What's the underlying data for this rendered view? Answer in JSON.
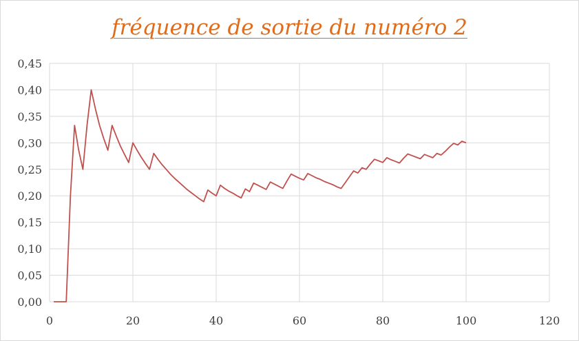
{
  "chart_data": {
    "type": "line",
    "title": "fréquence de sortie du numéro 2",
    "xlim": [
      0,
      120
    ],
    "ylim": [
      0,
      0.45
    ],
    "x_ticks": [
      0,
      20,
      40,
      60,
      80,
      100,
      120
    ],
    "x_tick_labels": [
      "0",
      "20",
      "40",
      "60",
      "80",
      "100",
      "120"
    ],
    "y_ticks": [
      0,
      0.05,
      0.1,
      0.15,
      0.2,
      0.25,
      0.3,
      0.35,
      0.4,
      0.45
    ],
    "y_tick_labels": [
      "0,00",
      "0,05",
      "0,10",
      "0,15",
      "0,20",
      "0,25",
      "0,30",
      "0,35",
      "0,40",
      "0,45"
    ],
    "grid": true,
    "legend": "none",
    "series": [
      {
        "color": "#c0504d",
        "x": [
          1,
          2,
          3,
          4,
          5,
          6,
          7,
          8,
          9,
          10,
          11,
          12,
          13,
          14,
          15,
          16,
          17,
          18,
          19,
          20,
          21,
          22,
          23,
          24,
          25,
          26,
          27,
          28,
          29,
          30,
          31,
          32,
          33,
          34,
          35,
          36,
          37,
          38,
          39,
          40,
          41,
          42,
          43,
          44,
          45,
          46,
          47,
          48,
          49,
          50,
          51,
          52,
          53,
          54,
          55,
          56,
          57,
          58,
          59,
          60,
          61,
          62,
          63,
          64,
          65,
          66,
          67,
          68,
          69,
          70,
          71,
          72,
          73,
          74,
          75,
          76,
          77,
          78,
          79,
          80,
          81,
          82,
          83,
          84,
          85,
          86,
          87,
          88,
          89,
          90,
          91,
          92,
          93,
          94,
          95,
          96,
          97,
          98,
          99,
          100
        ],
        "y": [
          0,
          0,
          0,
          0,
          0.2,
          0.333,
          0.286,
          0.25,
          0.333,
          0.4,
          0.364,
          0.333,
          0.308,
          0.286,
          0.333,
          0.313,
          0.294,
          0.278,
          0.263,
          0.3,
          0.286,
          0.273,
          0.261,
          0.25,
          0.28,
          0.269,
          0.259,
          0.25,
          0.241,
          0.233,
          0.226,
          0.219,
          0.212,
          0.206,
          0.2,
          0.194,
          0.189,
          0.211,
          0.205,
          0.2,
          0.22,
          0.214,
          0.209,
          0.205,
          0.2,
          0.196,
          0.213,
          0.208,
          0.224,
          0.22,
          0.216,
          0.212,
          0.226,
          0.222,
          0.218,
          0.214,
          0.228,
          0.241,
          0.237,
          0.233,
          0.23,
          0.242,
          0.238,
          0.234,
          0.231,
          0.227,
          0.224,
          0.221,
          0.217,
          0.214,
          0.225,
          0.236,
          0.247,
          0.243,
          0.253,
          0.25,
          0.26,
          0.269,
          0.266,
          0.263,
          0.272,
          0.268,
          0.265,
          0.262,
          0.271,
          0.279,
          0.276,
          0.273,
          0.27,
          0.278,
          0.275,
          0.272,
          0.28,
          0.277,
          0.284,
          0.292,
          0.299,
          0.296,
          0.303,
          0.3
        ]
      }
    ]
  }
}
